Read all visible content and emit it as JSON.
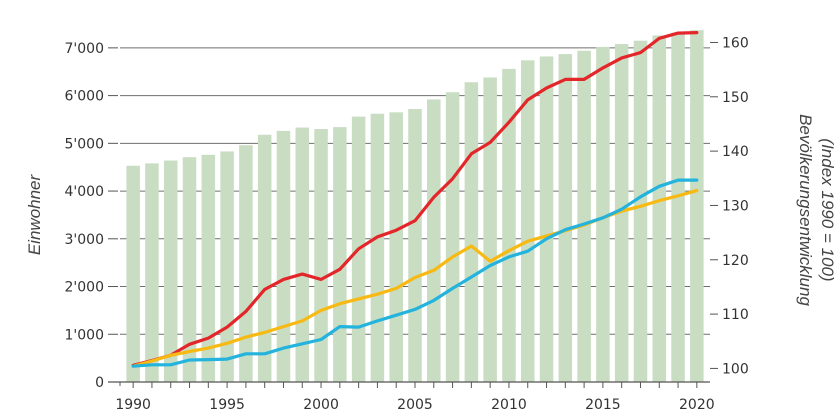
{
  "chart_data": {
    "type": "bar",
    "title": "",
    "x": [
      1990,
      1991,
      1992,
      1993,
      1994,
      1995,
      1996,
      1997,
      1998,
      1999,
      2000,
      2001,
      2002,
      2003,
      2004,
      2005,
      2006,
      2007,
      2008,
      2009,
      2010,
      2011,
      2012,
      2013,
      2014,
      2015,
      2016,
      2017,
      2018,
      2019,
      2020
    ],
    "x_ticks": [
      "1990",
      "1995",
      "2000",
      "2005",
      "2010",
      "2015",
      "2020"
    ],
    "xlim": [
      1989.3,
      2020.7
    ],
    "xlabel": "",
    "ylabel_left": "Einwohner",
    "ylim_left": [
      0,
      7500
    ],
    "left_ticks": [
      "0",
      "1'000",
      "2'000",
      "3'000",
      "4'000",
      "5'000",
      "6'000",
      "7'000"
    ],
    "left_tick_values": [
      0,
      1000,
      2000,
      3000,
      4000,
      5000,
      6000,
      7000
    ],
    "ylabel_right": "Bevölkerungsentwicklung",
    "ylabel_right_sub": "(Index 1990 = 100)",
    "ylim_right": [
      97.5,
      163.4
    ],
    "right_ticks": [
      "100",
      "110",
      "120",
      "130",
      "140",
      "150",
      "160"
    ],
    "right_tick_values": [
      100,
      110,
      120,
      130,
      140,
      150,
      160
    ],
    "grid_left_values": [
      1000,
      2000,
      3000,
      4000,
      5000,
      6000,
      7000
    ],
    "bars": {
      "color": "#c9ddc3",
      "axis": "left",
      "values": [
        4530,
        4580,
        4640,
        4710,
        4760,
        4830,
        4960,
        5180,
        5260,
        5330,
        5300,
        5340,
        5560,
        5620,
        5650,
        5720,
        5920,
        6070,
        6280,
        6380,
        6560,
        6740,
        6820,
        6870,
        6940,
        7020,
        7080,
        7150,
        7260,
        7320,
        7370
      ]
    },
    "series": [
      {
        "color": "#e3262a",
        "axis": "left",
        "values": [
          350,
          450,
          560,
          790,
          920,
          1150,
          1480,
          1940,
          2150,
          2260,
          2150,
          2360,
          2790,
          3040,
          3180,
          3380,
          3870,
          4260,
          4780,
          5020,
          5440,
          5910,
          6160,
          6340,
          6340,
          6580,
          6790,
          6900,
          7200,
          7310,
          7320
        ]
      },
      {
        "color": "#f7b912",
        "axis": "left",
        "values": [
          330,
          440,
          560,
          640,
          710,
          810,
          940,
          1040,
          1160,
          1280,
          1500,
          1640,
          1740,
          1840,
          1960,
          2190,
          2340,
          2620,
          2850,
          2530,
          2750,
          2950,
          3060,
          3170,
          3290,
          3440,
          3580,
          3680,
          3800,
          3900,
          4010
        ]
      },
      {
        "color": "#23b3dd",
        "axis": "left",
        "values": [
          330,
          360,
          360,
          460,
          470,
          480,
          590,
          590,
          710,
          800,
          890,
          1160,
          1150,
          1280,
          1400,
          1520,
          1710,
          1960,
          2200,
          2440,
          2620,
          2740,
          3000,
          3190,
          3310,
          3440,
          3620,
          3880,
          4100,
          4230,
          4230
        ]
      }
    ],
    "grid": true,
    "legend": "none"
  }
}
